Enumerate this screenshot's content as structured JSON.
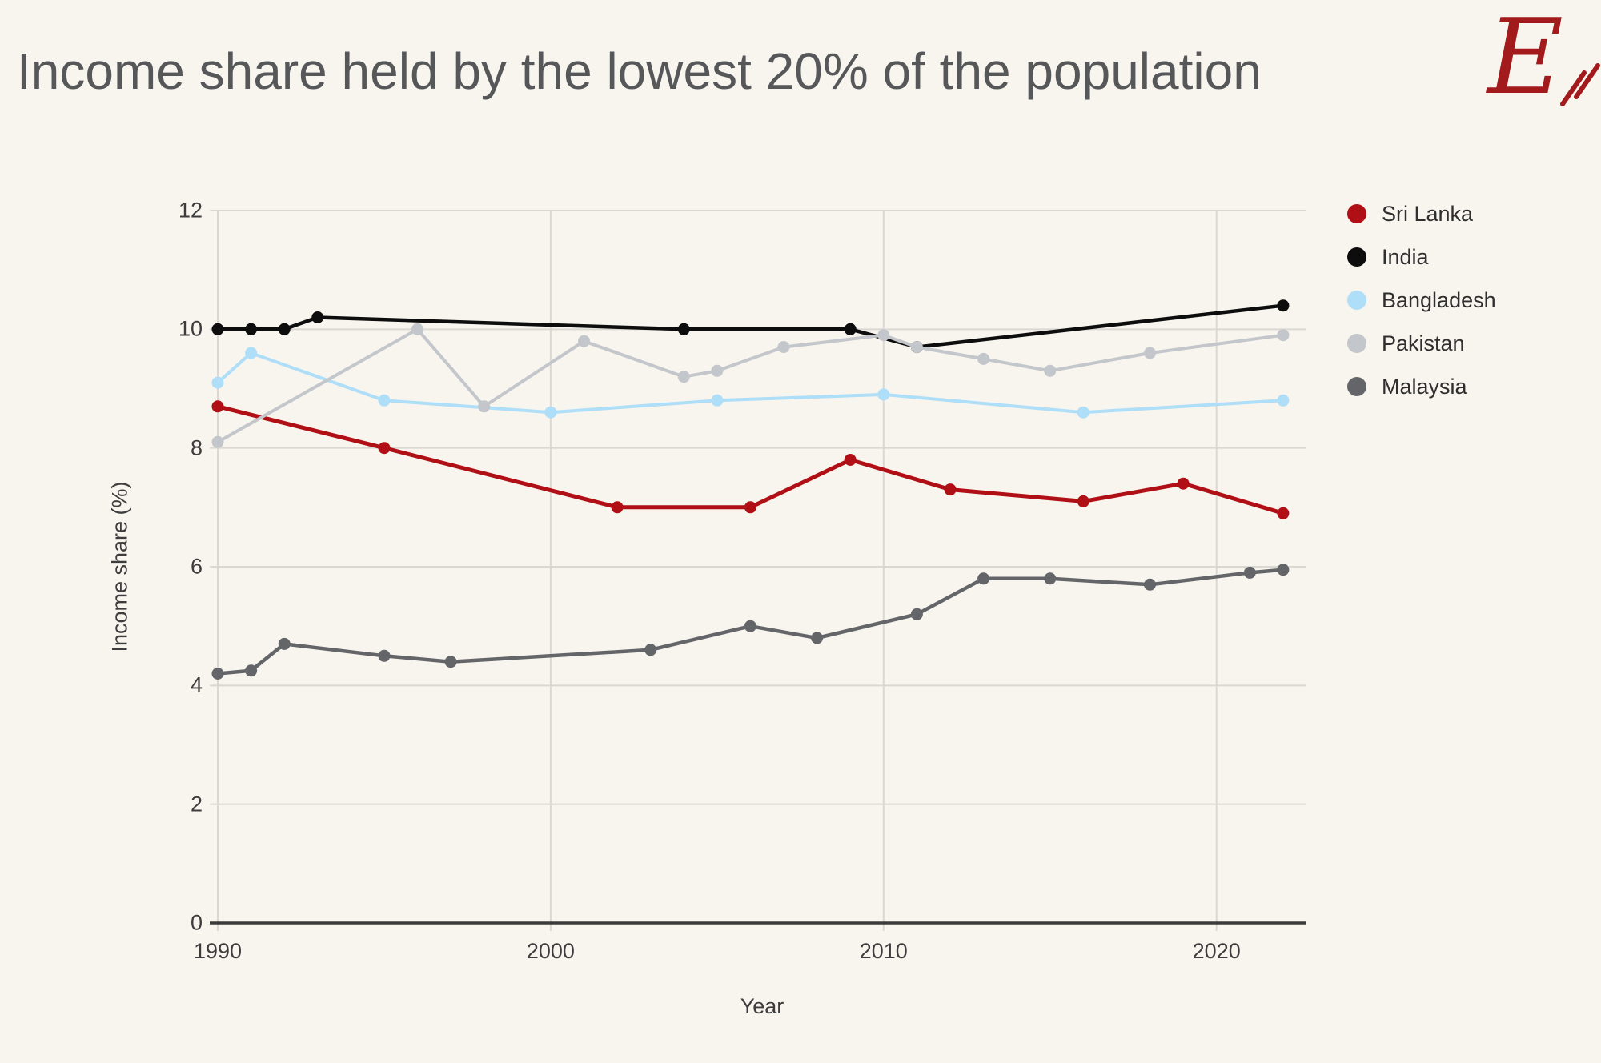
{
  "header": {
    "title": "Income share held by the lowest 20% of the population",
    "logo_letter": "E",
    "logo_color": "#a31a1d"
  },
  "chart_data": {
    "type": "line",
    "title": "Income share held by the lowest 20% of the population",
    "xlabel": "Year",
    "ylabel": "Income share (%)",
    "xlim": [
      1990,
      2022.7
    ],
    "ylim": [
      0,
      12
    ],
    "xticks": [
      1990,
      2000,
      2010,
      2020
    ],
    "yticks": [
      0,
      2,
      4,
      6,
      8,
      10,
      12
    ],
    "grid": true,
    "legend_position": "right",
    "colors": {
      "background": "#f8f4ee",
      "gridline": "#dbd8d3",
      "axis_line": "#3b3b3b",
      "text": "#3d3d3d"
    },
    "series": [
      {
        "name": "Sri Lanka",
        "color": "#b01015",
        "points": [
          [
            1990,
            8.7
          ],
          [
            1995,
            8.0
          ],
          [
            2002,
            7.0
          ],
          [
            2006,
            7.0
          ],
          [
            2009,
            7.8
          ],
          [
            2012,
            7.3
          ],
          [
            2016,
            7.1
          ],
          [
            2019,
            7.4
          ],
          [
            2022,
            6.9
          ]
        ]
      },
      {
        "name": "India",
        "color": "#0d0d0d",
        "points": [
          [
            1990,
            10.0
          ],
          [
            1991,
            10.0
          ],
          [
            1992,
            10.0
          ],
          [
            1993,
            10.2
          ],
          [
            2004,
            10.0
          ],
          [
            2009,
            10.0
          ],
          [
            2011,
            9.7
          ],
          [
            2022,
            10.4
          ]
        ]
      },
      {
        "name": "Bangladesh",
        "color": "#aedef8",
        "points": [
          [
            1990,
            9.1
          ],
          [
            1991,
            9.6
          ],
          [
            1995,
            8.8
          ],
          [
            2000,
            8.6
          ],
          [
            2005,
            8.8
          ],
          [
            2010,
            8.9
          ],
          [
            2016,
            8.6
          ],
          [
            2022,
            8.8
          ]
        ]
      },
      {
        "name": "Pakistan",
        "color": "#c3c6ca",
        "points": [
          [
            1990,
            8.1
          ],
          [
            1996,
            10.0
          ],
          [
            1998,
            8.7
          ],
          [
            2001,
            9.8
          ],
          [
            2004,
            9.2
          ],
          [
            2005,
            9.3
          ],
          [
            2007,
            9.7
          ],
          [
            2010,
            9.9
          ],
          [
            2011,
            9.7
          ],
          [
            2013,
            9.5
          ],
          [
            2015,
            9.3
          ],
          [
            2018,
            9.6
          ],
          [
            2022,
            9.9
          ]
        ]
      },
      {
        "name": "Malaysia",
        "color": "#636569",
        "points": [
          [
            1990,
            4.2
          ],
          [
            1991,
            4.25
          ],
          [
            1992,
            4.7
          ],
          [
            1995,
            4.5
          ],
          [
            1997,
            4.4
          ],
          [
            2003,
            4.6
          ],
          [
            2006,
            5.0
          ],
          [
            2008,
            4.8
          ],
          [
            2011,
            5.2
          ],
          [
            2013,
            5.8
          ],
          [
            2015,
            5.8
          ],
          [
            2018,
            5.7
          ],
          [
            2021,
            5.9
          ],
          [
            2022,
            5.95
          ]
        ]
      }
    ]
  }
}
